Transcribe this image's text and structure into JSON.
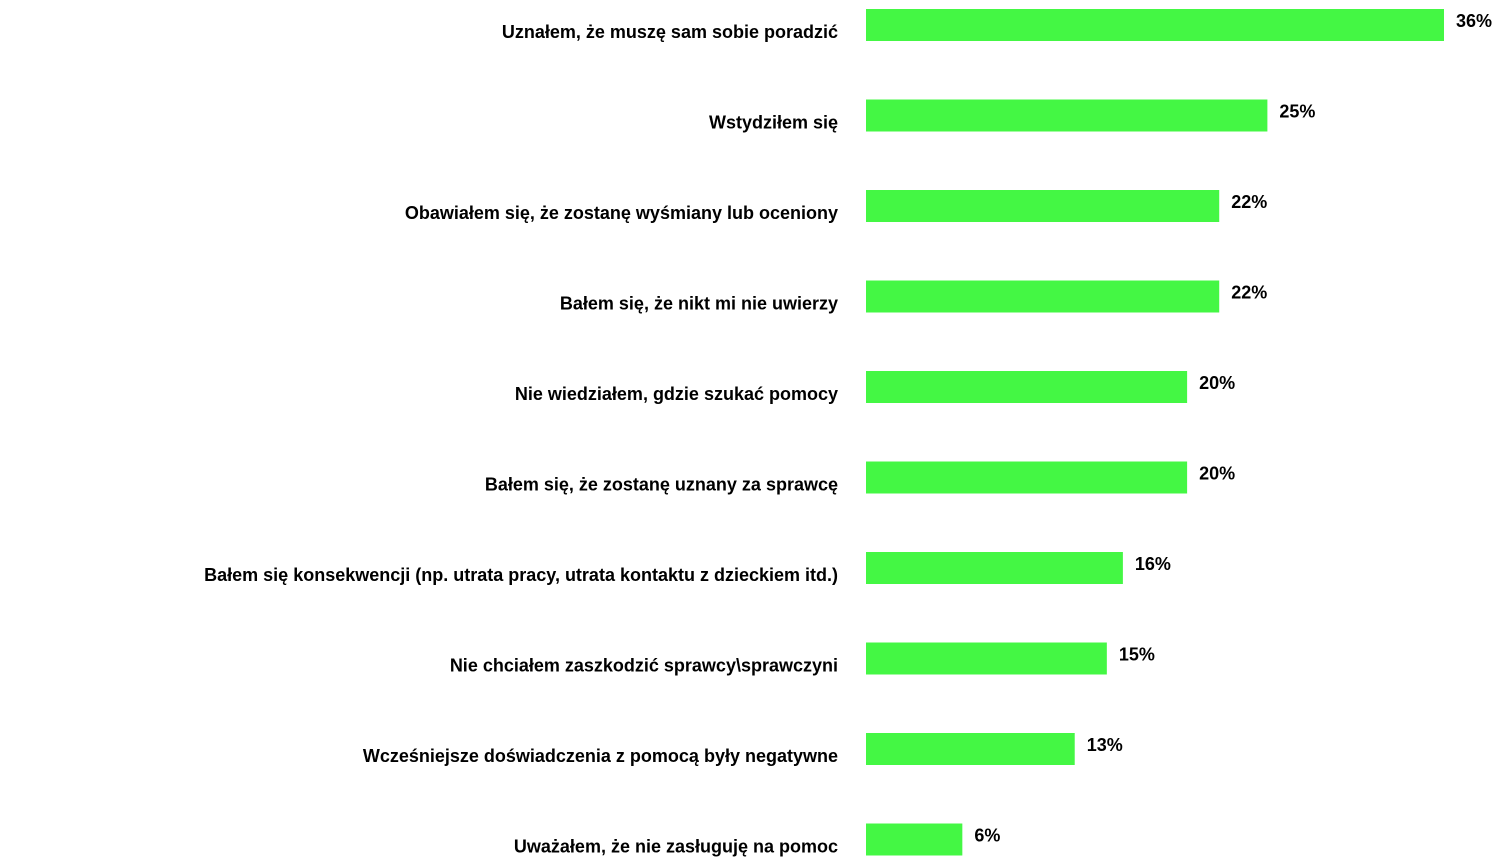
{
  "chart_data": {
    "type": "bar",
    "orientation": "horizontal",
    "categories": [
      "Uznałem, że muszę sam sobie poradzić",
      "Wstydziłem się",
      "Obawiałem się, że zostanę wyśmiany lub oceniony",
      "Bałem się, że nikt mi nie uwierzy",
      "Nie wiedziałem, gdzie szukać pomocy",
      "Bałem się, że zostanę uznany za sprawcę",
      "Bałem się konsekwencji (np. utrata pracy, utrata kontaktu z dzieckiem itd.)",
      "Nie chciałem zaszkodzić sprawcy\\sprawczyni",
      "Wcześniejsze doświadczenia z pomocą były negatywne",
      "Uważałem, że nie zasługuję na pomoc"
    ],
    "values": [
      36,
      25,
      22,
      22,
      20,
      20,
      16,
      15,
      13,
      6
    ],
    "value_labels": [
      "36%",
      "25%",
      "22%",
      "22%",
      "20%",
      "20%",
      "16%",
      "15%",
      "13%",
      "6%"
    ],
    "color": "#44f744"
  }
}
